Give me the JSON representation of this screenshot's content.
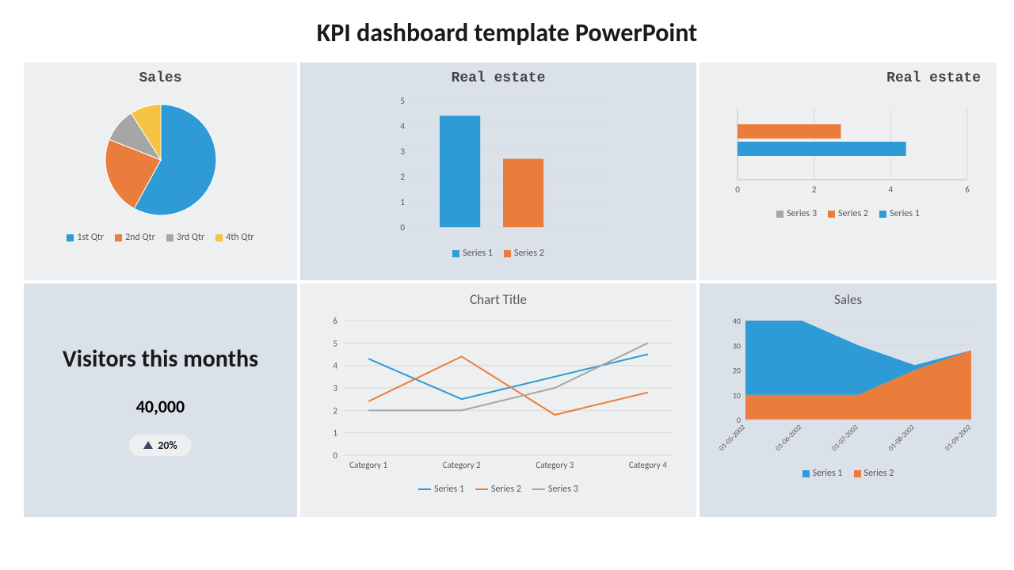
{
  "page_title": "KPI dashboard template PowerPoint",
  "colors": {
    "blue": "#2e9bd6",
    "orange": "#eb7d3c",
    "gray": "#a6a6a6",
    "yellow": "#f5c242",
    "bg_light": "#eeeff0",
    "bg_blue": "#dbe1e9",
    "grid": "#d9d9d9",
    "axis": "#bfbfbf",
    "text": "#595959"
  },
  "pie": {
    "title": "Sales",
    "type": "pie",
    "slices": [
      {
        "label": "1st Qtr",
        "value": 58,
        "color": "#2e9bd6"
      },
      {
        "label": "2nd Qtr",
        "value": 23,
        "color": "#eb7d3c"
      },
      {
        "label": "3rd Qtr",
        "value": 10,
        "color": "#a6a6a6"
      },
      {
        "label": "4th Qtr",
        "value": 9,
        "color": "#f5c242"
      }
    ]
  },
  "bar_v": {
    "title": "Real estate",
    "type": "bar",
    "ylim": [
      0,
      5
    ],
    "ytick_step": 1,
    "bar_width": 0.4,
    "series": [
      {
        "label": "Series 1",
        "value": 4.4,
        "color": "#2e9bd6"
      },
      {
        "label": "Series 2",
        "value": 2.7,
        "color": "#eb7d3c"
      }
    ]
  },
  "bar_h": {
    "title": "Real estate",
    "type": "bar-horizontal",
    "xlim": [
      0,
      6
    ],
    "xtick_step": 2,
    "series": [
      {
        "label": "Series 3",
        "value": 0.0,
        "color": "#a6a6a6"
      },
      {
        "label": "Series 2",
        "value": 2.7,
        "color": "#eb7d3c"
      },
      {
        "label": "Series 1",
        "value": 4.4,
        "color": "#2e9bd6"
      }
    ]
  },
  "visitors": {
    "title": "Visitors this months",
    "value": "40,000",
    "delta": "20%"
  },
  "line": {
    "title": "Chart Title",
    "type": "line",
    "categories": [
      "Category 1",
      "Category 2",
      "Category 3",
      "Category 4"
    ],
    "ylim": [
      0,
      6
    ],
    "ytick_step": 1,
    "line_width": 2,
    "series": [
      {
        "label": "Series 1",
        "color": "#2e9bd6",
        "values": [
          4.3,
          2.5,
          3.5,
          4.5
        ]
      },
      {
        "label": "Series 2",
        "color": "#eb7d3c",
        "values": [
          2.4,
          4.4,
          1.8,
          2.8
        ]
      },
      {
        "label": "Series 3",
        "color": "#a6a6a6",
        "values": [
          2.0,
          2.0,
          3.0,
          5.0
        ]
      }
    ]
  },
  "area": {
    "title": "Sales",
    "type": "area-stacked",
    "categories": [
      "01-05-2002",
      "01-06-2002",
      "01-07-2002",
      "01-08-2002",
      "01-09-2002"
    ],
    "ylim": [
      0,
      40
    ],
    "ytick_step": 10,
    "series": [
      {
        "label": "Series 1",
        "color": "#2e9bd6",
        "values": [
          30,
          30,
          20,
          2,
          0
        ]
      },
      {
        "label": "Series 2",
        "color": "#eb7d3c",
        "values": [
          10,
          10,
          10,
          20,
          28
        ]
      }
    ]
  }
}
